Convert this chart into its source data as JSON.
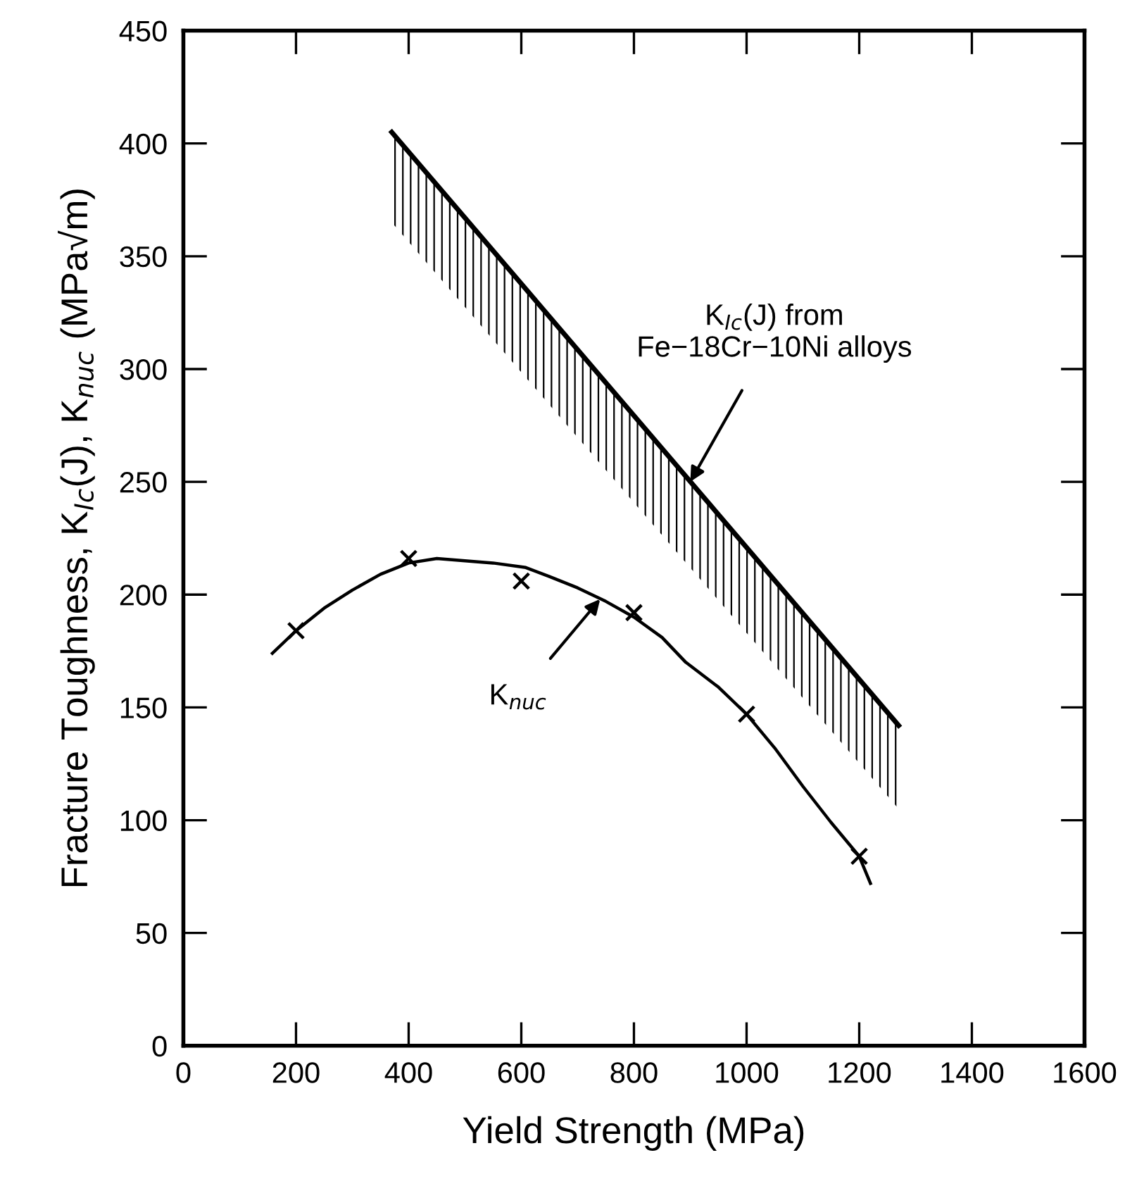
{
  "chart_data": {
    "type": "scatter",
    "xlabel": "Yield Strength (MPa)",
    "ylabel": "Fracture Toughness, K$_{Ic}$(J), K$_{nuc}$ (MPa√m)",
    "xlim": [
      0,
      1600
    ],
    "ylim": [
      0,
      450
    ],
    "xticks": [
      0,
      200,
      400,
      600,
      800,
      1000,
      1200,
      1400,
      1600
    ],
    "yticks": [
      0,
      50,
      100,
      150,
      200,
      250,
      300,
      350,
      400,
      450
    ],
    "grid": false,
    "legend": false,
    "series": [
      {
        "type": "line",
        "color": "#000000",
        "x": [
          370,
          1270
        ],
        "values": [
          405,
          142
        ],
        "lower": [
          365,
          105
        ],
        "upper": [
          405,
          142
        ]
      },
      {
        "type": "line",
        "color": "#000000",
        "marker": "none",
        "line_style": "solid",
        "x": [
          158,
          200,
          250,
          300,
          350,
          400,
          450,
          500,
          550,
          608,
          650,
          700,
          750,
          800,
          850,
          892,
          950,
          1000,
          1050,
          1100,
          1150,
          1200,
          1220
        ],
        "values": [
          174,
          184,
          194,
          202,
          209,
          214,
          216,
          215,
          214,
          212,
          208,
          203,
          197,
          190,
          181,
          170,
          159,
          147,
          132,
          115,
          99,
          84,
          72
        ]
      },
      {
        "color": "#000000",
        "marker": "cross",
        "x": [
          200,
          400,
          600,
          800,
          1000,
          1200
        ],
        "values": [
          184,
          216,
          206,
          192,
          147,
          84
        ]
      }
    ],
    "annotations": [
      {
        "text": "K$_{Ic}$(J) from\nFe−18Cr−10Ni alloys",
        "x": 900,
        "y": 250
      },
      {
        "text": "K$_{nuc}$",
        "x": 740,
        "y": 198
      }
    ]
  }
}
